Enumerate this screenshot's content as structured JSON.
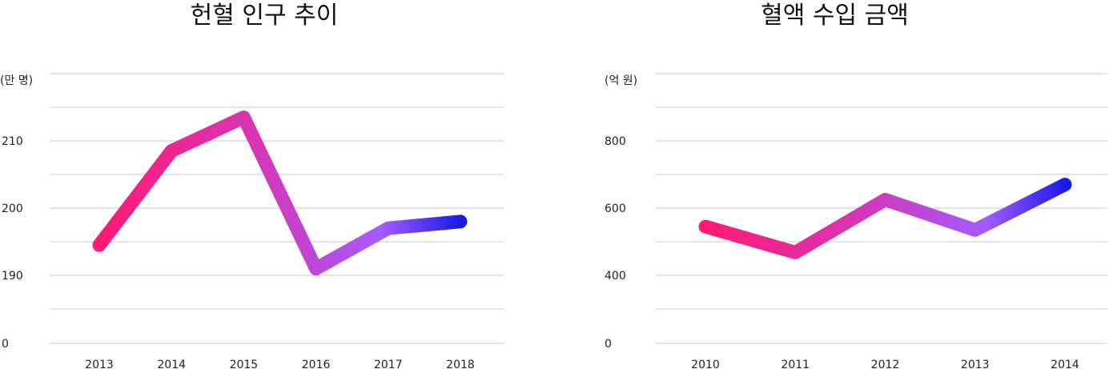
{
  "chart_data": [
    {
      "type": "line",
      "title": "헌혈 인구 추이",
      "ylabel": "(만 명)",
      "categories": [
        "2013",
        "2014",
        "2015",
        "2016",
        "2017",
        "2018"
      ],
      "values": [
        194.5,
        208.5,
        213.5,
        191,
        197,
        198
      ],
      "ytick_labels": [
        "0",
        "190",
        "200",
        "210"
      ],
      "axis_break": true,
      "grid": true,
      "line_gradient": [
        "#ff1a75",
        "#d437b8",
        "#a35cff",
        "#1a1ae6"
      ]
    },
    {
      "type": "line",
      "title": "혈액 수입 금액",
      "ylabel": "(억 원)",
      "categories": [
        "2010",
        "2011",
        "2012",
        "2013",
        "2014"
      ],
      "values": [
        545,
        468,
        625,
        535,
        670
      ],
      "ytick_labels": [
        "0",
        "400",
        "600",
        "800"
      ],
      "axis_break": true,
      "grid": true,
      "line_gradient": [
        "#ff1a75",
        "#d437b8",
        "#a35cff",
        "#1a1ae6"
      ]
    }
  ]
}
